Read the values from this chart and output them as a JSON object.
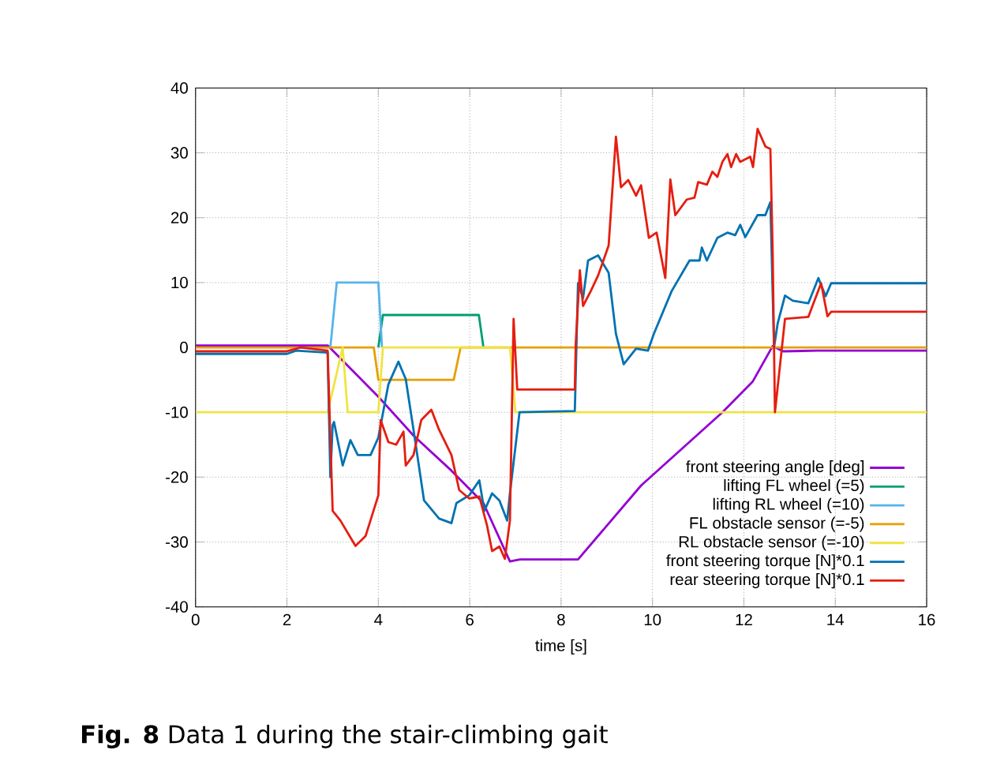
{
  "chart_data": {
    "type": "line",
    "xlabel": "time [s]",
    "xlim": [
      0,
      16
    ],
    "ylim": [
      -40,
      40
    ],
    "xticks": [
      0,
      2,
      4,
      6,
      8,
      10,
      12,
      14,
      16
    ],
    "yticks": [
      -40,
      -30,
      -20,
      -10,
      0,
      10,
      20,
      30,
      40
    ],
    "grid": true,
    "legend": "bottom right",
    "line_style": "solid",
    "annotations": [
      "**Fig. 8** Data 1 during the stair-climbing gait"
    ],
    "series": [
      {
        "name": "front steering angle [deg]",
        "color": "#9400d3",
        "x": [
          0,
          2.89,
          4.0,
          4.77,
          5.6,
          6.3,
          6.88,
          7.1,
          8.37,
          9.75,
          11.53,
          12.19,
          12.63,
          12.86,
          13.6,
          16
        ],
        "values": [
          0.3,
          0.3,
          -7.6,
          -13.6,
          -19,
          -24,
          -33,
          -32.7,
          -32.7,
          -21.3,
          -10,
          -5.3,
          0.2,
          -0.6,
          -0.5,
          -0.5
        ]
      },
      {
        "name": "lifting FL wheel (=5)",
        "color": "#009e73",
        "x": [
          4.0,
          4.1,
          6.2,
          6.3
        ],
        "values": [
          0,
          5,
          5,
          0
        ]
      },
      {
        "name": "lifting RL wheel (=10)",
        "color": "#56b4e9",
        "x": [
          2.95,
          3.09,
          4.0,
          4.08
        ],
        "values": [
          0,
          10,
          10,
          0
        ]
      },
      {
        "name": "FL obstacle sensor (=-5)",
        "color": "#e69f00",
        "x": [
          0,
          3.9,
          4.0,
          5.65,
          5.8,
          16
        ],
        "values": [
          0,
          0,
          -5,
          -5,
          0,
          0
        ]
      },
      {
        "name": "RL obstacle sensor (=-10)",
        "color": "#f0e442",
        "x": [
          0,
          2.89,
          3.22,
          3.33,
          4.0,
          4.1,
          6.88,
          7.0,
          16
        ],
        "values": [
          -10,
          -10,
          0,
          -10,
          -10,
          0,
          0,
          -10,
          -10
        ]
      },
      {
        "name": "front steering torque [N]*0.1",
        "color": "#0072b2",
        "x": [
          0,
          2.0,
          2.2,
          2.89,
          2.95,
          3.0,
          3.03,
          3.22,
          3.39,
          3.55,
          3.83,
          4.0,
          4.22,
          4.44,
          4.6,
          4.77,
          5.0,
          5.33,
          5.6,
          5.71,
          5.99,
          6.21,
          6.32,
          6.49,
          6.65,
          6.82,
          6.88,
          7.09,
          8.3,
          8.37,
          8.48,
          8.59,
          8.81,
          9.04,
          9.2,
          9.37,
          9.64,
          9.9,
          10.03,
          10.42,
          10.81,
          11.03,
          11.08,
          11.19,
          11.42,
          11.64,
          11.81,
          11.92,
          12.03,
          12.3,
          12.47,
          12.58,
          12.66,
          12.74,
          12.9,
          13.07,
          13.41,
          13.63,
          13.79,
          13.91,
          16
        ],
        "values": [
          -1,
          -1,
          -0.5,
          -0.8,
          -20,
          -12,
          -11.5,
          -18.2,
          -14.3,
          -16.6,
          -16.6,
          -13.9,
          -5.7,
          -2.2,
          -4.9,
          -12.7,
          -23.6,
          -26.4,
          -27.1,
          -24,
          -22.8,
          -20.5,
          -25.2,
          -22.5,
          -23.6,
          -26.7,
          -22.5,
          -10,
          -9.8,
          9.9,
          7.6,
          13.4,
          14.2,
          11.5,
          2.1,
          -2.6,
          -0.2,
          -0.5,
          2.1,
          8.7,
          13.4,
          13.4,
          15.4,
          13.4,
          16.9,
          17.7,
          17.3,
          18.9,
          17,
          20.4,
          20.4,
          22.4,
          0,
          3.7,
          8,
          7.2,
          6.8,
          10.7,
          7.9,
          9.9,
          9.9
        ]
      },
      {
        "name": "rear steering torque [N]*0.1",
        "color": "#e51e10",
        "x": [
          0,
          2.0,
          2.3,
          2.89,
          3.0,
          3.17,
          3.5,
          3.72,
          4.0,
          4.05,
          4.22,
          4.39,
          4.55,
          4.6,
          4.77,
          4.94,
          5.16,
          5.33,
          5.6,
          5.77,
          5.99,
          6.21,
          6.38,
          6.49,
          6.65,
          6.77,
          6.88,
          6.96,
          7.04,
          8.3,
          8.32,
          8.41,
          8.48,
          8.65,
          8.81,
          9.04,
          9.2,
          9.31,
          9.47,
          9.64,
          9.75,
          9.92,
          10.09,
          10.28,
          10.39,
          10.5,
          10.75,
          10.92,
          11.0,
          11.19,
          11.31,
          11.42,
          11.53,
          11.64,
          11.72,
          11.83,
          11.92,
          12.14,
          12.2,
          12.3,
          12.47,
          12.58,
          12.63,
          12.68,
          12.9,
          13.41,
          13.69,
          13.83,
          13.91,
          16
        ],
        "values": [
          -0.6,
          -0.6,
          0,
          -0.5,
          -25.2,
          -26.7,
          -30.6,
          -29.1,
          -22.8,
          -11.2,
          -14.6,
          -15,
          -13,
          -18.2,
          -16.6,
          -11.2,
          -9.6,
          -12.7,
          -16.6,
          -22,
          -23.3,
          -23,
          -27.5,
          -31.4,
          -30.7,
          -32.6,
          -26.7,
          4.4,
          -6.5,
          -6.5,
          0.5,
          11.9,
          6.4,
          8.7,
          11.1,
          15.7,
          32.5,
          24.7,
          25.8,
          23.4,
          25,
          16.9,
          17.7,
          10.7,
          25.9,
          20.4,
          22.8,
          23.1,
          25.5,
          25.1,
          27.1,
          26.3,
          28.6,
          29.8,
          27.8,
          29.8,
          28.6,
          29.4,
          27.8,
          33.7,
          31,
          30.6,
          14.6,
          -10,
          4.4,
          4.7,
          9.9,
          4.8,
          5.5,
          5.5
        ]
      }
    ]
  }
}
